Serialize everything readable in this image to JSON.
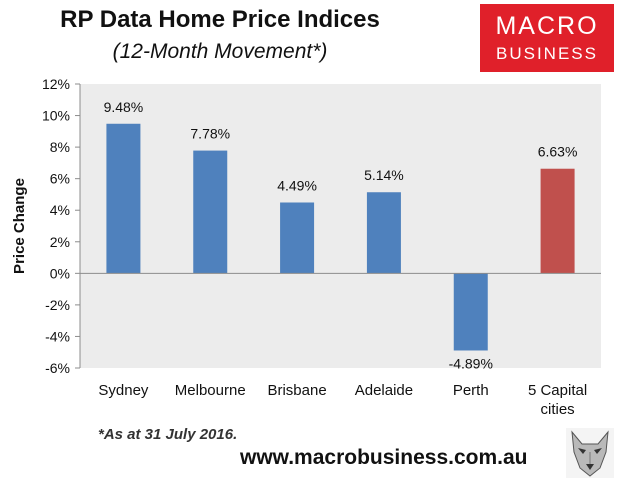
{
  "title": "RP Data Home Price Indices",
  "subtitle": "(12-Month Movement*)",
  "logo": {
    "line1": "MACRO",
    "line2": "BUSINESS"
  },
  "footnote": "*As at 31 July 2016.",
  "url": "www.macrobusiness.com.au",
  "colors": {
    "plot_bg": "#ececec",
    "bar_blue": "#4f81bd",
    "bar_red": "#c0504d",
    "brand_red": "#e0202a"
  },
  "chart_data": {
    "type": "bar",
    "title": "RP Data Home Price Indices",
    "subtitle": "(12-Month Movement*)",
    "categories": [
      "Sydney",
      "Melbourne",
      "Brisbane",
      "Adelaide",
      "Perth",
      "5 Capital cities"
    ],
    "values": [
      9.48,
      7.78,
      4.49,
      5.14,
      -4.89,
      6.63
    ],
    "data_labels": [
      "9.48%",
      "7.78%",
      "4.49%",
      "5.14%",
      "-4.89%",
      "6.63%"
    ],
    "highlight_index": 5,
    "xlabel": "",
    "ylabel": "Price Change",
    "ylim": [
      -6,
      12
    ],
    "yticks": [
      -6,
      -4,
      -2,
      0,
      2,
      4,
      6,
      8,
      10,
      12
    ],
    "ytick_labels": [
      "-6%",
      "-4%",
      "-2%",
      "0%",
      "2%",
      "4%",
      "6%",
      "8%",
      "10%",
      "12%"
    ],
    "grid": false,
    "legend": "none"
  }
}
